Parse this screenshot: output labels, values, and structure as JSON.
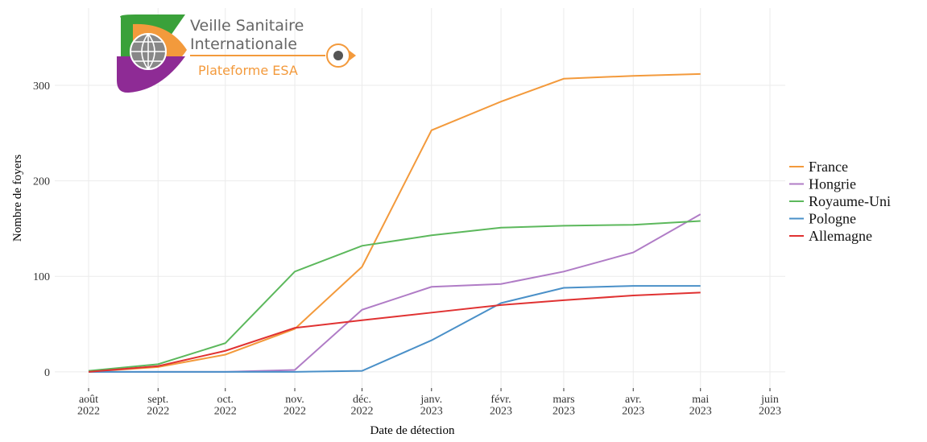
{
  "logo": {
    "title_lines": [
      "Veille Sanitaire",
      "Internationale"
    ],
    "subtitle": "Plateforme ESA"
  },
  "chart_data": {
    "type": "line",
    "x_label": "Date de détection",
    "y_label": "Nombre de foyers",
    "x": [
      "2022-08",
      "2022-09",
      "2022-10",
      "2022-11",
      "2022-12",
      "2023-01",
      "2023-02",
      "2023-03",
      "2023-04",
      "2023-05",
      "2023-06"
    ],
    "series": [
      {
        "name": "France",
        "color": "#f39a3c",
        "values": [
          0,
          5,
          18,
          45,
          110,
          253,
          283,
          307,
          310,
          312,
          null
        ]
      },
      {
        "name": "Hongrie",
        "color": "#b07cc6",
        "values": [
          0,
          0,
          0,
          2,
          65,
          89,
          92,
          105,
          125,
          165,
          null
        ]
      },
      {
        "name": "Royaume-Uni",
        "color": "#5cb85c",
        "values": [
          1,
          8,
          30,
          105,
          132,
          143,
          151,
          153,
          154,
          158,
          null
        ]
      },
      {
        "name": "Pologne",
        "color": "#4a90c8",
        "values": [
          0,
          0,
          0,
          0,
          1,
          33,
          72,
          88,
          90,
          90,
          null
        ]
      },
      {
        "name": "Allemagne",
        "color": "#e03232",
        "values": [
          0,
          6,
          22,
          46,
          54,
          62,
          70,
          75,
          80,
          83,
          null
        ]
      }
    ],
    "xlim": [
      "2022-08",
      "2023-06"
    ],
    "xticks": [
      {
        "value": "2022-08",
        "label": "août\n2022"
      },
      {
        "value": "2022-09",
        "label": "sept.\n2022"
      },
      {
        "value": "2022-10",
        "label": "oct.\n2022"
      },
      {
        "value": "2022-11",
        "label": "nov.\n2022"
      },
      {
        "value": "2022-12",
        "label": "déc.\n2022"
      },
      {
        "value": "2023-01",
        "label": "janv.\n2023"
      },
      {
        "value": "2023-02",
        "label": "févr.\n2023"
      },
      {
        "value": "2023-03",
        "label": "mars\n2023"
      },
      {
        "value": "2023-04",
        "label": "avr.\n2023"
      },
      {
        "value": "2023-05",
        "label": "mai\n2023"
      },
      {
        "value": "2023-06",
        "label": "juin\n2023"
      }
    ],
    "ylim": [
      -17,
      381
    ],
    "yticks": [
      0,
      100,
      200,
      300
    ],
    "grid": true,
    "legend": "right"
  }
}
